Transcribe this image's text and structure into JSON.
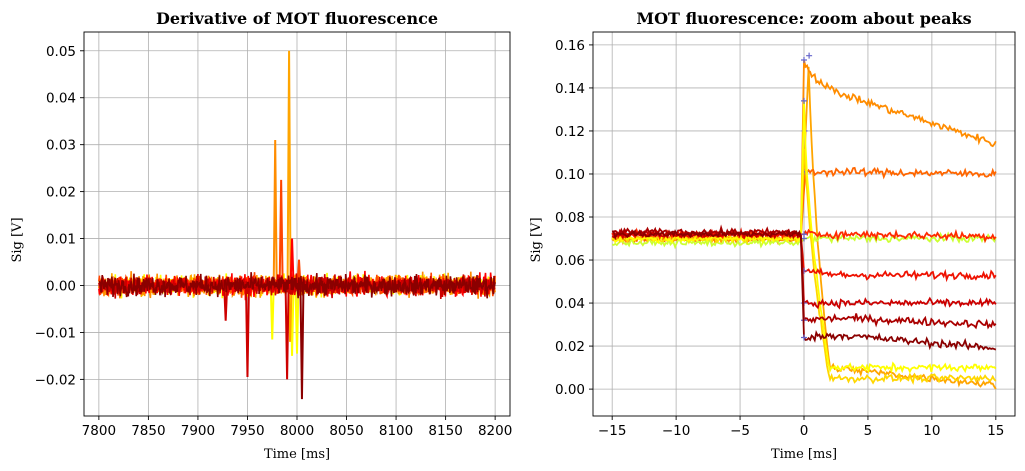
{
  "chart_data": [
    {
      "type": "line",
      "title": "Derivative of MOT fluorescence",
      "xlabel": "Time [ms]",
      "ylabel": "Sig [V]",
      "xlim": [
        7785,
        8215
      ],
      "ylim": [
        -0.0278,
        0.054
      ],
      "xticks": [
        7800,
        7850,
        7900,
        7950,
        8000,
        8050,
        8100,
        8150,
        8200
      ],
      "xtick_labels": [
        "7800",
        "7850",
        "7900",
        "7950",
        "8000",
        "8050",
        "8100",
        "8150",
        "8200"
      ],
      "yticks": [
        -0.02,
        -0.01,
        0.0,
        0.01,
        0.02,
        0.03,
        0.04,
        0.05
      ],
      "ytick_labels": [
        "−0.02",
        "−0.01",
        "0.00",
        "0.01",
        "0.02",
        "0.03",
        "0.04",
        "0.05"
      ],
      "grid": true,
      "noise_band": {
        "x_range": [
          7800,
          8200
        ],
        "amplitude": 0.004
      },
      "series": [
        {
          "color": "#ffff00",
          "spikes": [
            [
              7975,
              -0.0115
            ],
            [
              7995,
              -0.015
            ],
            [
              8000,
              -0.0145
            ]
          ]
        },
        {
          "color": "#ffa500",
          "spikes": [
            [
              7992,
              0.05
            ],
            [
              7993,
              -0.012
            ]
          ]
        },
        {
          "color": "#ff8c00",
          "spikes": [
            [
              7978,
              0.031
            ]
          ]
        },
        {
          "color": "#ff4500",
          "spikes": [
            [
              7984,
              0.0225
            ],
            [
              8002,
              0.0055
            ]
          ]
        },
        {
          "color": "#ff0000",
          "spikes": [
            [
              7995,
              0.01
            ]
          ]
        },
        {
          "color": "#cd0000",
          "spikes": [
            [
              7928,
              -0.0075
            ],
            [
              7950,
              -0.0195
            ],
            [
              7990,
              -0.02
            ]
          ]
        },
        {
          "color": "#8b0000",
          "spikes": [
            [
              8005,
              -0.0242
            ]
          ]
        }
      ]
    },
    {
      "type": "line",
      "title": "MOT fluorescence: zoom about peaks",
      "xlabel": "Time [ms]",
      "ylabel": "Sig [V]",
      "xlim": [
        -16.5,
        16.5
      ],
      "ylim": [
        -0.0125,
        0.166
      ],
      "xticks": [
        -15,
        -10,
        -5,
        0,
        5,
        10,
        15
      ],
      "xtick_labels": [
        "−15",
        "−10",
        "−5",
        "0",
        "5",
        "10",
        "15"
      ],
      "yticks": [
        0.0,
        0.02,
        0.04,
        0.06,
        0.08,
        0.1,
        0.12,
        0.14,
        0.16
      ],
      "ytick_labels": [
        "0.00",
        "0.02",
        "0.04",
        "0.06",
        "0.08",
        "0.10",
        "0.12",
        "0.14",
        "0.16"
      ],
      "grid": true,
      "peak_marker_color": "#6666cc",
      "series": [
        {
          "color": "#ffa500",
          "pre": 0.07,
          "peak": 0.155,
          "peak_x": 0.4,
          "mid": [
            2.0,
            0.01
          ],
          "end": 0.002
        },
        {
          "color": "#ff8c00",
          "pre": 0.07,
          "peak": 0.153,
          "peak_x": 0.0,
          "mid": [
            2.5,
            0.138
          ],
          "end": 0.114
        },
        {
          "color": "#ff6600",
          "pre": 0.07,
          "peak": 0.101,
          "peak_x": 0.1,
          "mid": [
            3.0,
            0.101
          ],
          "end": 0.1
        },
        {
          "color": "#ccff33",
          "pre": 0.068,
          "peak": 0.07,
          "peak_x": 0.0,
          "mid": [
            3.0,
            0.07
          ],
          "end": 0.07
        },
        {
          "color": "#ffd700",
          "pre": 0.07,
          "peak": 0.12,
          "peak_x": 0.05,
          "mid": [
            2.0,
            0.005
          ],
          "end": 0.005
        },
        {
          "color": "#ffff00",
          "pre": 0.07,
          "peak": 0.134,
          "peak_x": 0.0,
          "mid": [
            2.0,
            0.01
          ],
          "end": 0.01
        },
        {
          "color": "#ff2a00",
          "pre": 0.072,
          "peak": 0.072,
          "peak_x": 0.0,
          "mid": [
            3.0,
            0.072
          ],
          "end": 0.071
        },
        {
          "color": "#ee1100",
          "pre": 0.072,
          "peak": 0.055,
          "peak_x": 0.0,
          "mid": [
            3.0,
            0.053
          ],
          "end": 0.053
        },
        {
          "color": "#cc0000",
          "pre": 0.072,
          "peak": 0.04,
          "peak_x": 0.0,
          "mid": [
            3.0,
            0.04
          ],
          "end": 0.04
        },
        {
          "color": "#aa0000",
          "pre": 0.073,
          "peak": 0.032,
          "peak_x": 0.0,
          "mid": [
            3.0,
            0.033
          ],
          "end": 0.03
        },
        {
          "color": "#8b0000",
          "pre": 0.072,
          "peak": 0.024,
          "peak_x": 0.0,
          "mid": [
            3.0,
            0.025
          ],
          "end": 0.019
        }
      ]
    }
  ]
}
